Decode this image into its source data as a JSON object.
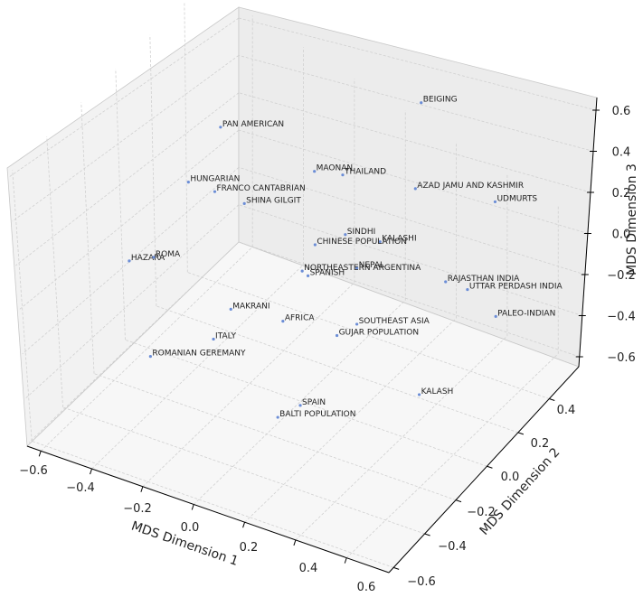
{
  "chart_data": {
    "type": "scatter",
    "projection": "3d",
    "xlabel": "MDS Dimension 1",
    "ylabel": "MDS Dimension 2",
    "zlabel": "MDS Dimension 3",
    "x_ticks": [
      "−0.6",
      "−0.4",
      "−0.2",
      "0.0",
      "0.2",
      "0.4",
      "0.6"
    ],
    "y_ticks": [
      "−0.6",
      "−0.4",
      "−0.2",
      "0.0",
      "0.2",
      "0.4"
    ],
    "z_ticks": [
      "0.6",
      "0.4",
      "0.2",
      "0.0",
      "−0.2",
      "−0.4",
      "−0.6"
    ],
    "grid": true,
    "marker_color": "#6b8dd6",
    "pane_colors": [
      "#f2f2f2",
      "#ececec",
      "#f7f7f7"
    ],
    "points": [
      {
        "label": "BEIGING",
        "u": 0.655,
        "v": 0.172
      },
      {
        "label": "PAN AMERICAN",
        "u": 0.343,
        "v": 0.213
      },
      {
        "label": "MAONAN",
        "u": 0.489,
        "v": 0.287
      },
      {
        "label": "THAILAND",
        "u": 0.533,
        "v": 0.293
      },
      {
        "label": "HUNGARIAN",
        "u": 0.293,
        "v": 0.305
      },
      {
        "label": "FRANCO CANTABRIAN",
        "u": 0.334,
        "v": 0.321
      },
      {
        "label": "AZAD JAMU AND KASHMIR",
        "u": 0.646,
        "v": 0.316
      },
      {
        "label": "UDMURTS",
        "u": 0.77,
        "v": 0.338
      },
      {
        "label": "SHINA GILGIT",
        "u": 0.38,
        "v": 0.341
      },
      {
        "label": "SINDHI",
        "u": 0.537,
        "v": 0.393
      },
      {
        "label": "KALASHI",
        "u": 0.591,
        "v": 0.405
      },
      {
        "label": "CHINESE POPULATION",
        "u": 0.49,
        "v": 0.41
      },
      {
        "label": "HAZARA",
        "u": 0.201,
        "v": 0.437
      },
      {
        "label": "ROMA",
        "u": 0.239,
        "v": 0.431
      },
      {
        "label": "NEPAL",
        "u": 0.555,
        "v": 0.449
      },
      {
        "label": "NORTHEASTERN ARGENTINA",
        "u": 0.47,
        "v": 0.454
      },
      {
        "label": "SPANISH",
        "u": 0.479,
        "v": 0.462
      },
      {
        "label": "RAJASTHAN INDIA",
        "u": 0.693,
        "v": 0.472
      },
      {
        "label": "UTTAR PERDASH INDIA",
        "u": 0.727,
        "v": 0.485
      },
      {
        "label": "MAKRANI",
        "u": 0.359,
        "v": 0.518
      },
      {
        "label": "PALEO-INDIAN",
        "u": 0.771,
        "v": 0.53
      },
      {
        "label": "AFRICA",
        "u": 0.44,
        "v": 0.538
      },
      {
        "label": "SOUTHEAST ASIA",
        "u": 0.555,
        "v": 0.543
      },
      {
        "label": "GUJAR POPULATION",
        "u": 0.524,
        "v": 0.562
      },
      {
        "label": "ITALY",
        "u": 0.332,
        "v": 0.568
      },
      {
        "label": "ROMANIAN GEREMANY",
        "u": 0.234,
        "v": 0.597
      },
      {
        "label": "KALASH",
        "u": 0.652,
        "v": 0.661
      },
      {
        "label": "SPAIN",
        "u": 0.467,
        "v": 0.679
      },
      {
        "label": "BALTI POPULATION",
        "u": 0.432,
        "v": 0.699
      }
    ]
  }
}
